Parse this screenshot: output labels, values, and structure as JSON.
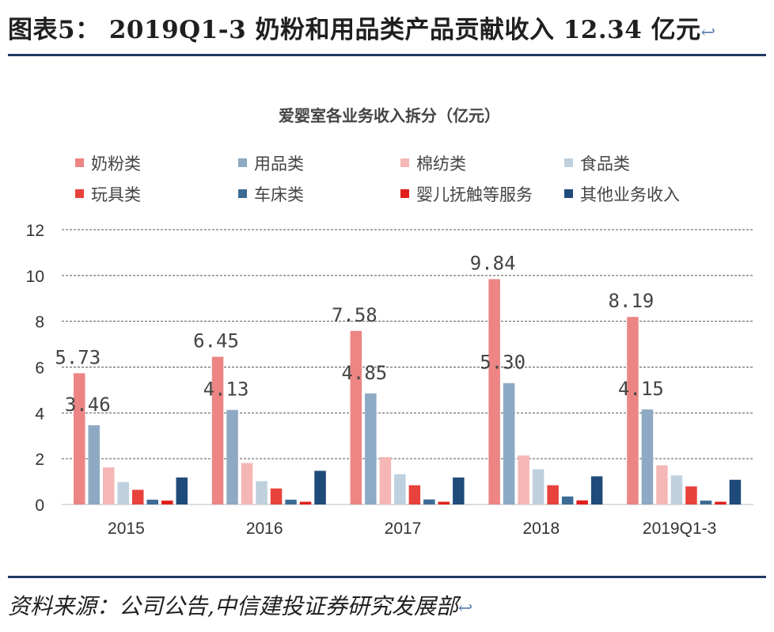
{
  "header": {
    "title": "图表5： 2019Q1-3 奶粉和用品类产品贡献收入 12.34 亿元",
    "return_mark": "↩"
  },
  "footer": {
    "source": "资料来源：公司公告,中信建投证券研究发展部",
    "return_mark": "↩"
  },
  "chart_data": {
    "type": "bar",
    "title": "爱婴室各业务收入拆分（亿元）",
    "xlabel": "",
    "ylabel": "",
    "categories": [
      "2015",
      "2016",
      "2017",
      "2018",
      "2019Q1-3"
    ],
    "ylim": [
      0,
      12
    ],
    "yticks": [
      0,
      2,
      4,
      6,
      8,
      10,
      12
    ],
    "grid": true,
    "legend_position": "top",
    "series": [
      {
        "name": "奶粉类",
        "color": "#ec8584",
        "values": [
          5.73,
          6.45,
          7.58,
          9.84,
          8.19
        ],
        "labels": [
          "5.73",
          "6.45",
          "7.58",
          "9.84",
          "8.19"
        ]
      },
      {
        "name": "用品类",
        "color": "#8ea9c3",
        "values": [
          3.46,
          4.13,
          4.85,
          5.3,
          4.15
        ],
        "labels": [
          "3.46",
          "4.13",
          "4.85",
          "5.30",
          "4.15"
        ]
      },
      {
        "name": "棉纺类",
        "color": "#f4b7b5",
        "values": [
          1.62,
          1.81,
          2.07,
          2.14,
          1.71
        ]
      },
      {
        "name": "食品类",
        "color": "#bfd0de",
        "values": [
          0.98,
          1.02,
          1.32,
          1.54,
          1.27
        ]
      },
      {
        "name": "玩具类",
        "color": "#e8423c",
        "values": [
          0.64,
          0.7,
          0.84,
          0.84,
          0.79
        ]
      },
      {
        "name": "车床类",
        "color": "#3c6c95",
        "values": [
          0.21,
          0.21,
          0.22,
          0.35,
          0.17
        ]
      },
      {
        "name": "婴儿抚触等服务",
        "color": "#e01f1a",
        "values": [
          0.17,
          0.12,
          0.12,
          0.18,
          0.12
        ]
      },
      {
        "name": "其他业务收入",
        "color": "#1f4b7a",
        "values": [
          1.18,
          1.47,
          1.18,
          1.23,
          1.08
        ]
      }
    ]
  }
}
